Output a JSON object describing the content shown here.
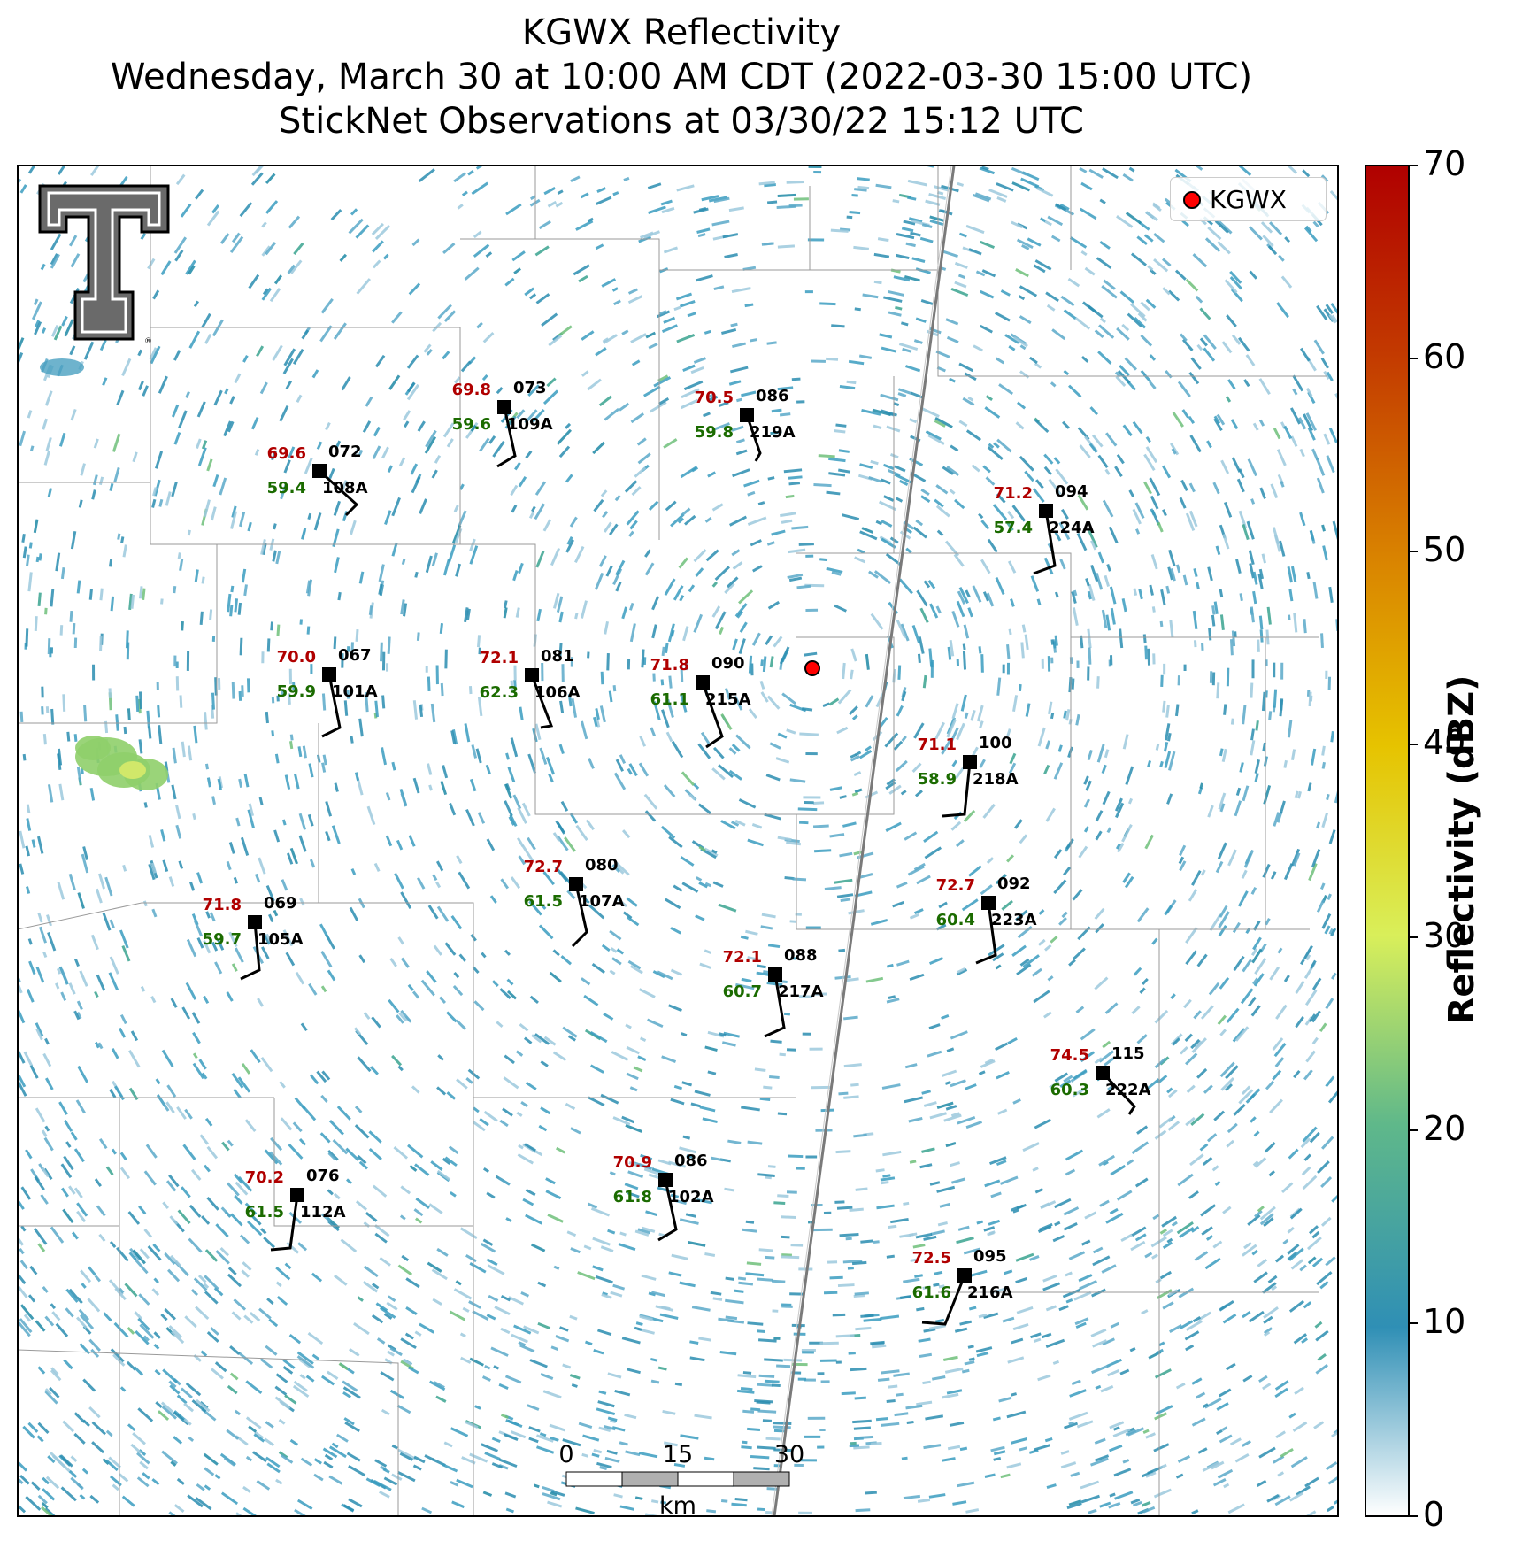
{
  "title": {
    "line1": "KGWX Reflectivity",
    "line2": "Wednesday, March 30 at 10:00 AM CDT (2022-03-30 15:00 UTC)",
    "line3": "StickNet Observations at 03/30/22 15:12 UTC"
  },
  "legend": {
    "label": "KGWX",
    "marker_color": "#ff0000"
  },
  "colorbar": {
    "title": "Reflectivity (dBZ)",
    "ticks": [
      "0",
      "10",
      "20",
      "30",
      "40",
      "50",
      "60",
      "70"
    ],
    "min": 0,
    "max": 70,
    "colors": [
      "#ffffff",
      "#2f8fb5",
      "#5fb88a",
      "#d9ef5a",
      "#e6c300",
      "#d98300",
      "#c33a00",
      "#b00000"
    ]
  },
  "scale_bar": {
    "ticks": [
      "0",
      "15",
      "30"
    ],
    "unit": "km"
  },
  "logo": {
    "text": "TT"
  },
  "stations": [
    {
      "id": "109A",
      "temp": "69.8",
      "dew": "59.6",
      "pres": "073"
    },
    {
      "id": "219A",
      "temp": "70.5",
      "dew": "59.8",
      "pres": "086"
    },
    {
      "id": "108A",
      "temp": "69.6",
      "dew": "59.4",
      "pres": "072"
    },
    {
      "id": "224A",
      "temp": "71.2",
      "dew": "57.4",
      "pres": "094"
    },
    {
      "id": "101A",
      "temp": "70.0",
      "dew": "59.9",
      "pres": "067"
    },
    {
      "id": "106A",
      "temp": "72.1",
      "dew": "62.3",
      "pres": "081"
    },
    {
      "id": "215A",
      "temp": "71.8",
      "dew": "61.1",
      "pres": "090"
    },
    {
      "id": "218A",
      "temp": "71.1",
      "dew": "58.9",
      "pres": "100"
    },
    {
      "id": "107A",
      "temp": "72.7",
      "dew": "61.5",
      "pres": "080"
    },
    {
      "id": "223A",
      "temp": "72.7",
      "dew": "60.4",
      "pres": "092"
    },
    {
      "id": "105A",
      "temp": "71.8",
      "dew": "59.7",
      "pres": "069"
    },
    {
      "id": "217A",
      "temp": "72.1",
      "dew": "60.7",
      "pres": "088"
    },
    {
      "id": "222A",
      "temp": "74.5",
      "dew": "60.3",
      "pres": "115"
    },
    {
      "id": "112A",
      "temp": "70.2",
      "dew": "61.5",
      "pres": "076"
    },
    {
      "id": "102A",
      "temp": "70.9",
      "dew": "61.8",
      "pres": "086"
    },
    {
      "id": "216A",
      "temp": "72.5",
      "dew": "61.6",
      "pres": "095"
    }
  ],
  "colors": {
    "temp": "#b00000",
    "dew": "#1b6b00",
    "label": "#000000"
  }
}
